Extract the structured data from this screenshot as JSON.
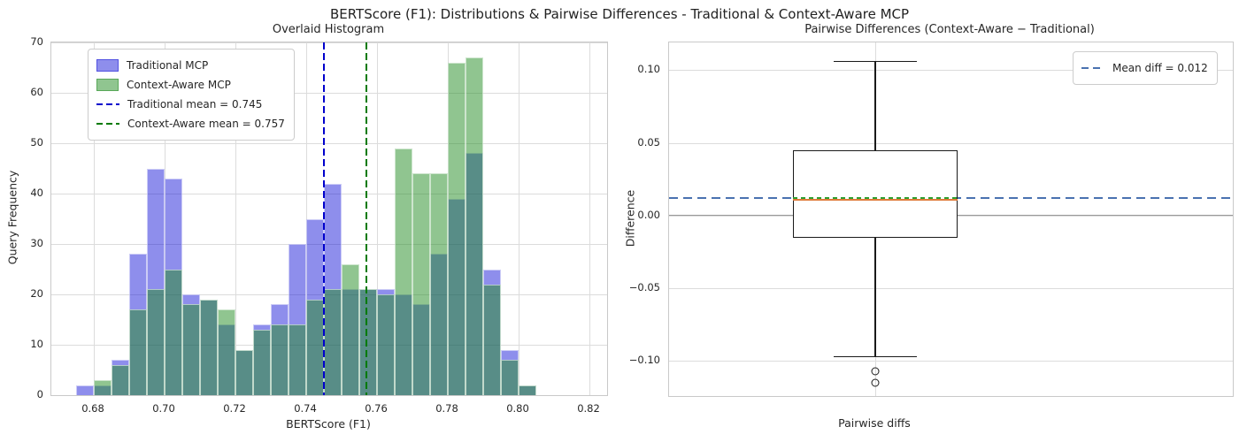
{
  "figure": {
    "title": "BERTScore (F1): Distributions & Pairwise Differences - Traditional & Context-Aware MCP"
  },
  "colors": {
    "traditional_fill": "rgba(15,15,215,0.47)",
    "context_fill": "rgba(34,139,34,0.5)",
    "traditional_mean_line": "#0000cc",
    "context_mean_line": "#007a00",
    "mean_diff_line": "#4a72b0",
    "median_line": "#e07b39",
    "box_mean_line": "#2e9e2e",
    "zero_line": "#999999",
    "grid": "#dcdcdc",
    "box_stroke": "#1a1a1a"
  },
  "chart_data": [
    {
      "id": "histogram",
      "type": "bar",
      "title": "Overlaid Histogram",
      "xlabel": "BERTScore (F1)",
      "ylabel": "Query Frequency",
      "xlim": [
        0.668,
        0.825
      ],
      "ylim": [
        0,
        70
      ],
      "xticks": [
        0.68,
        0.7,
        0.72,
        0.74,
        0.76,
        0.78,
        0.8,
        0.82
      ],
      "yticks": [
        0,
        10,
        20,
        30,
        40,
        50,
        60,
        70
      ],
      "grid": true,
      "legend_position": "upper left",
      "bin_start": 0.675,
      "bin_width": 0.005,
      "series": [
        {
          "name": "Traditional MCP",
          "values": [
            2,
            2,
            7,
            28,
            45,
            43,
            20,
            19,
            14,
            9,
            14,
            18,
            30,
            35,
            42,
            21,
            21,
            21,
            20,
            18,
            28,
            39,
            48,
            25,
            9,
            2
          ]
        },
        {
          "name": "Context-Aware MCP",
          "values": [
            0,
            3,
            6,
            17,
            21,
            25,
            18,
            19,
            17,
            9,
            13,
            14,
            14,
            19,
            21,
            26,
            21,
            20,
            49,
            44,
            44,
            66,
            67,
            22,
            7,
            2
          ]
        }
      ],
      "mean_lines": [
        {
          "label": "Traditional mean = 0.745",
          "x": 0.745
        },
        {
          "label": "Context-Aware mean = 0.757",
          "x": 0.757
        }
      ]
    },
    {
      "id": "boxplot",
      "type": "boxplot",
      "title": "Pairwise Differences (Context-Aware − Traditional)",
      "ylabel": "Difference",
      "xtick_label": "Pairwise diffs",
      "ylim": [
        -0.124,
        0.119
      ],
      "yticks": [
        {
          "v": 0.1,
          "label": "0.10"
        },
        {
          "v": 0.05,
          "label": "0.05"
        },
        {
          "v": 0.0,
          "label": "0.00"
        },
        {
          "v": -0.05,
          "label": "−0.05"
        },
        {
          "v": -0.1,
          "label": "−0.10"
        }
      ],
      "grid": true,
      "box": {
        "q1": -0.015,
        "q3": 0.045,
        "median": 0.011,
        "mean": 0.012,
        "whisker_low": -0.097,
        "whisker_high": 0.106,
        "outliers": [
          -0.107,
          -0.115
        ]
      },
      "zero_line": 0.0,
      "mean_diff_line": {
        "value": 0.012,
        "label": "Mean diff = 0.012"
      },
      "legend_position": "upper right"
    }
  ]
}
